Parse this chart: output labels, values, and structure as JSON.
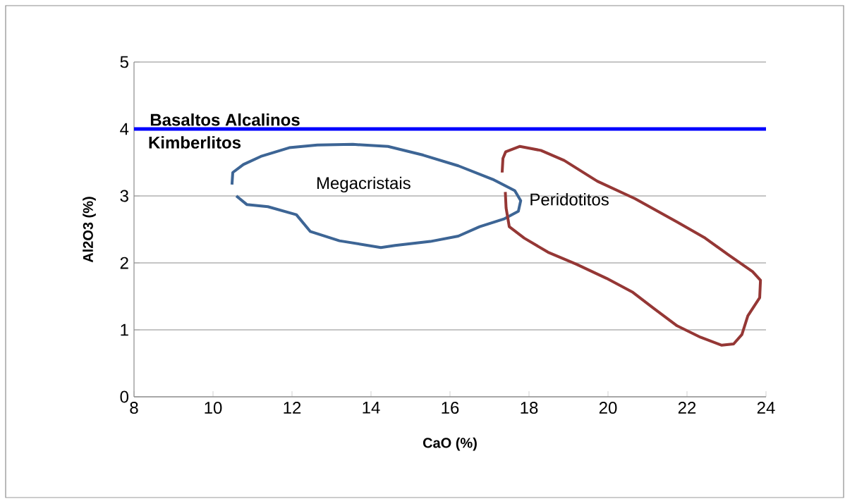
{
  "chart_data": {
    "type": "line",
    "xlabel": "CaO (%)",
    "ylabel": "Al2O3 (%)",
    "xlim": [
      8,
      24
    ],
    "xticks": [
      8,
      10,
      12,
      14,
      16,
      18,
      20,
      22,
      24
    ],
    "ylim": [
      0,
      5
    ],
    "yticks": [
      0,
      1,
      2,
      3,
      4,
      5
    ],
    "grid": "y",
    "marker": "none",
    "line_style": "solid",
    "series": [
      {
        "color": "#3d6595",
        "x": [
          10.48,
          10.5,
          10.77,
          11.21,
          11.93,
          12.64,
          13.54,
          14.43,
          15.32,
          16.21,
          17.11,
          17.64,
          17.79,
          17.73,
          17.38,
          16.75,
          16.21,
          15.5,
          14.61,
          14.25,
          13.2,
          12.46,
          12.11,
          11.39,
          10.86,
          10.59
        ],
        "values": [
          3.17,
          3.35,
          3.47,
          3.59,
          3.72,
          3.76,
          3.77,
          3.74,
          3.61,
          3.45,
          3.24,
          3.08,
          2.93,
          2.77,
          2.66,
          2.54,
          2.4,
          2.32,
          2.26,
          2.23,
          2.33,
          2.47,
          2.72,
          2.84,
          2.87,
          3.0
        ]
      },
      {
        "color": "#953735",
        "x": [
          17.32,
          17.34,
          17.41,
          17.77,
          18.3,
          18.89,
          19.73,
          20.68,
          21.75,
          22.46,
          23.05,
          23.66,
          23.86,
          23.84,
          23.54,
          23.39,
          23.18,
          22.88,
          22.34,
          21.75,
          21.16,
          20.63,
          19.96,
          19.2,
          18.48,
          17.88,
          17.5,
          17.42,
          17.4
        ],
        "values": [
          3.35,
          3.56,
          3.66,
          3.74,
          3.68,
          3.53,
          3.22,
          2.96,
          2.61,
          2.37,
          2.12,
          1.87,
          1.74,
          1.48,
          1.21,
          0.93,
          0.79,
          0.77,
          0.89,
          1.06,
          1.32,
          1.56,
          1.77,
          1.98,
          2.16,
          2.37,
          2.54,
          2.82,
          3.06
        ]
      }
    ],
    "ref_lines": [
      {
        "axis": "y",
        "value": 4,
        "label": "Basaltos Alcalinos",
        "color": "#0000ff",
        "line_style": "solid"
      }
    ],
    "annotations": [
      "Kimberlitos",
      "Megacristais",
      "Peridotitos"
    ]
  }
}
